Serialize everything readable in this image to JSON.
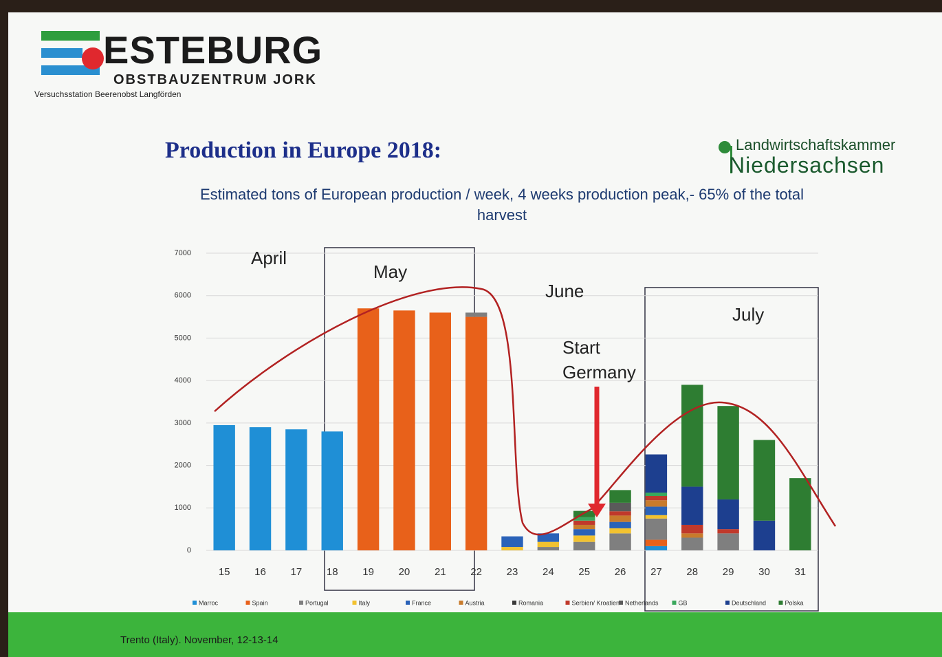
{
  "slide": {
    "logo": "ESTEBURG",
    "logo_subtitle": "OBSTBAUZENTRUM JORK",
    "station": "Versuchsstation Beerenobst Langförden",
    "organization_line1": "Landwirtschaftskammer",
    "organization_line2": "Niedersachsen",
    "footer": "Trento (Italy). November, 12-13-14"
  },
  "chart_data": {
    "type": "stacked-bar",
    "title": "Production in Europe 2018:",
    "subtitle": "Estimated tons of European production / week,  4 weeks production peak,- 65% of the total harvest",
    "annotations": [
      "April",
      "May",
      "June",
      "July",
      "Start Germany"
    ],
    "categories": [
      "15",
      "16",
      "17",
      "18",
      "19",
      "20",
      "21",
      "22",
      "23",
      "24",
      "25",
      "26",
      "27",
      "28",
      "29",
      "30",
      "31"
    ],
    "ylim": [
      0,
      7000
    ],
    "yticks": [
      0,
      1000,
      2000,
      3000,
      4000,
      5000,
      6000,
      7000
    ],
    "grid": true,
    "series": [
      {
        "name": "Marroc",
        "color": "#1f8fd6",
        "values": [
          2950,
          2900,
          2850,
          2800,
          0,
          0,
          0,
          0,
          0,
          0,
          0,
          0,
          100,
          0,
          0,
          0,
          0
        ]
      },
      {
        "name": "Spain",
        "color": "#e8611a",
        "values": [
          0,
          0,
          0,
          0,
          5700,
          5650,
          5600,
          5500,
          0,
          0,
          0,
          0,
          150,
          0,
          0,
          0,
          0
        ]
      },
      {
        "name": "Portugal",
        "color": "#7f7f7f",
        "values": [
          0,
          0,
          0,
          0,
          0,
          0,
          0,
          100,
          0,
          80,
          200,
          400,
          500,
          300,
          400,
          0,
          0
        ]
      },
      {
        "name": "Italy",
        "color": "#f2c230",
        "values": [
          0,
          0,
          0,
          0,
          0,
          0,
          0,
          0,
          80,
          120,
          150,
          120,
          80,
          0,
          0,
          0,
          0
        ]
      },
      {
        "name": "France",
        "color": "#2a62b8",
        "values": [
          0,
          0,
          0,
          0,
          0,
          0,
          0,
          0,
          250,
          200,
          150,
          150,
          200,
          0,
          0,
          0,
          0
        ]
      },
      {
        "name": "Austria",
        "color": "#c87b2c",
        "values": [
          0,
          0,
          0,
          0,
          0,
          0,
          0,
          0,
          0,
          0,
          100,
          150,
          150,
          100,
          0,
          0,
          0
        ]
      },
      {
        "name": "Romania",
        "color": "#3a3a3a",
        "values": [
          0,
          0,
          0,
          0,
          0,
          0,
          0,
          0,
          0,
          0,
          0,
          0,
          0,
          0,
          0,
          0,
          0
        ]
      },
      {
        "name": "Serbien/ Kroatien",
        "color": "#c0392b",
        "values": [
          0,
          0,
          0,
          0,
          0,
          0,
          0,
          0,
          0,
          0,
          100,
          100,
          100,
          200,
          100,
          0,
          0
        ]
      },
      {
        "name": "Netherlands",
        "color": "#5a5a5a",
        "values": [
          0,
          0,
          0,
          0,
          0,
          0,
          0,
          0,
          0,
          0,
          0,
          200,
          0,
          0,
          0,
          0,
          0
        ]
      },
      {
        "name": "GB",
        "color": "#3aa85c",
        "values": [
          0,
          0,
          0,
          0,
          0,
          0,
          0,
          0,
          0,
          0,
          80,
          0,
          80,
          0,
          0,
          0,
          0
        ]
      },
      {
        "name": "Deutschland",
        "color": "#1d3f8f",
        "values": [
          0,
          0,
          0,
          0,
          0,
          0,
          0,
          0,
          0,
          0,
          0,
          0,
          900,
          900,
          700,
          700,
          0
        ]
      },
      {
        "name": "Polska",
        "color": "#2e7d32",
        "values": [
          0,
          0,
          0,
          0,
          0,
          0,
          0,
          0,
          0,
          0,
          150,
          300,
          0,
          2400,
          2200,
          1900,
          1700
        ]
      }
    ]
  }
}
